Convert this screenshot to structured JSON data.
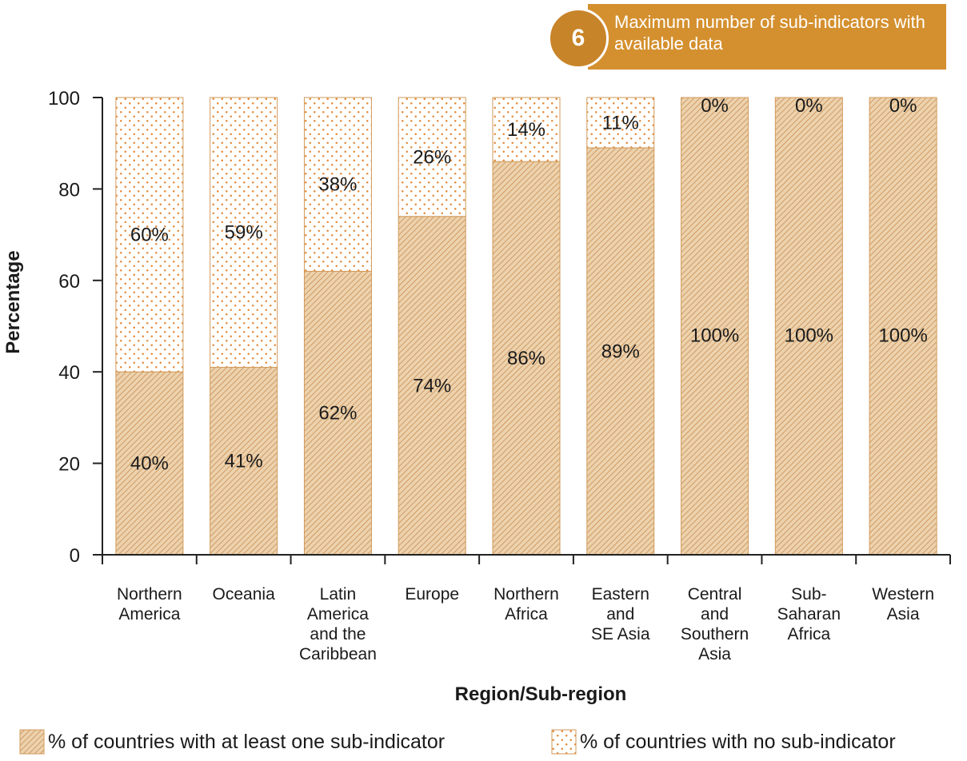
{
  "badge": {
    "number": "6",
    "text": "Maximum number of sub-indicators with available data"
  },
  "colors": {
    "accent": "#d4902f",
    "fill_base": "#ecd2ad",
    "hatch": "#c98d52",
    "dot": "#e38a3a",
    "edge": "#d19a5a"
  },
  "chart_data": {
    "type": "bar",
    "stacked": true,
    "xlabel": "Region/Sub-region",
    "ylabel": "Percentage",
    "ylim": [
      0,
      100
    ],
    "yticks": [
      0,
      20,
      40,
      60,
      80,
      100
    ],
    "grid": false,
    "legend_position": "bottom",
    "categories": [
      "Northern\nAmerica",
      "Oceania",
      "Latin\nAmerica\nand the\nCaribbean",
      "Europe",
      "Northern\nAfrica",
      "Eastern\nand\nSE Asia",
      "Central\nand\nSouthern\nAsia",
      "Sub-\nSaharan\nAfrica",
      "Western\nAsia"
    ],
    "series": [
      {
        "name": "% of countries with at least one sub-indicator",
        "values": [
          40,
          41,
          62,
          74,
          86,
          89,
          100,
          100,
          100
        ],
        "labels": [
          "40%",
          "41%",
          "62%",
          "74%",
          "86%",
          "89%",
          "100%",
          "100%",
          "100%"
        ]
      },
      {
        "name": "% of countries with no sub-indicator",
        "values": [
          60,
          59,
          38,
          26,
          14,
          11,
          0,
          0,
          0
        ],
        "labels": [
          "60%",
          "59%",
          "38%",
          "26%",
          "14%",
          "11%",
          "0%",
          "0%",
          "0%"
        ]
      }
    ]
  }
}
